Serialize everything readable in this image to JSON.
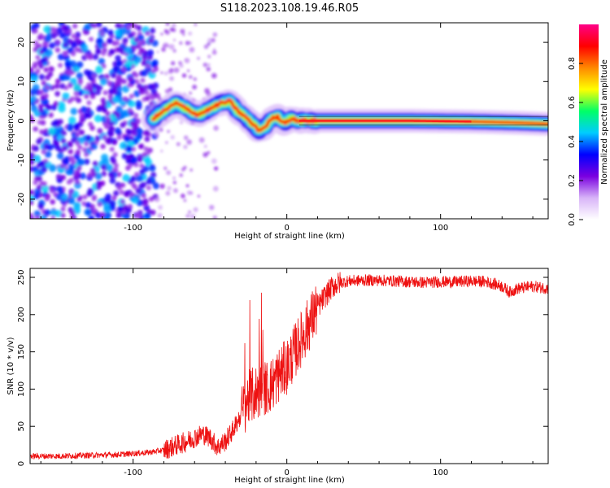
{
  "figure": {
    "title": "S118.2023.108.19.46.R05"
  },
  "chart_data": [
    {
      "type": "heatmap",
      "xlabel": "Height of straight line (km)",
      "ylabel": "Frequency (Hz)",
      "xlim": [
        -167,
        170
      ],
      "ylim": [
        -25,
        25
      ],
      "xticks": [
        -100,
        0,
        100
      ],
      "yticks": [
        -20,
        -10,
        0,
        10,
        20
      ],
      "grid": false,
      "colorbar": {
        "label": "Normalized spectral amplitude",
        "range": [
          0,
          1
        ],
        "ticks": [
          0.0,
          0.2,
          0.4,
          0.6,
          0.8
        ],
        "colormap": [
          "#ffffff",
          "#d8b4f8",
          "#7a00e0",
          "#0000ff",
          "#00ccff",
          "#00ff66",
          "#ffff00",
          "#ff8800",
          "#ff0000",
          "#ff0088"
        ]
      },
      "ridge": {
        "x": [
          -87,
          -80,
          -72,
          -65,
          -58,
          -50,
          -43,
          -37,
          -32,
          -27,
          -22,
          -18,
          -14,
          -10,
          -6,
          -2,
          3,
          8,
          15,
          40,
          80,
          120,
          150,
          170
        ],
        "y": [
          0.5,
          2.5,
          4.5,
          3.0,
          1.5,
          3.0,
          4.5,
          5.0,
          2.5,
          1.0,
          -1.0,
          -2.5,
          -1.5,
          0.5,
          1.0,
          -0.5,
          0.5,
          0.0,
          0.0,
          0.0,
          0.0,
          -0.2,
          -0.5,
          -0.8
        ]
      },
      "noise_region_x": [
        -167,
        -85
      ]
    },
    {
      "type": "line",
      "xlabel": "Height of straight line (km)",
      "ylabel": "SNR (10 * v/v)",
      "xlim": [
        -167,
        170
      ],
      "ylim": [
        0,
        262
      ],
      "xticks": [
        -100,
        0,
        100
      ],
      "yticks": [
        0,
        50,
        100,
        150,
        200,
        250
      ],
      "grid": false,
      "line_color": "#ee1111",
      "series": [
        {
          "name": "",
          "x": [
            -167,
            -150,
            -130,
            -110,
            -90,
            -80,
            -75,
            -70,
            -65,
            -60,
            -55,
            -50,
            -45,
            -40,
            -35,
            -30,
            -25,
            -20,
            -15,
            -10,
            -5,
            0,
            5,
            10,
            15,
            20,
            25,
            30,
            35,
            40,
            50,
            60,
            70,
            80,
            90,
            100,
            110,
            120,
            130,
            140,
            145,
            150,
            160,
            170
          ],
          "y": [
            10,
            10,
            11,
            12,
            15,
            18,
            22,
            26,
            30,
            35,
            40,
            35,
            22,
            30,
            45,
            65,
            88,
            95,
            100,
            105,
            120,
            130,
            150,
            170,
            190,
            210,
            225,
            238,
            243,
            245,
            246,
            246,
            245,
            244,
            243,
            244,
            244,
            245,
            244,
            238,
            230,
            235,
            238,
            235
          ]
        }
      ]
    }
  ]
}
